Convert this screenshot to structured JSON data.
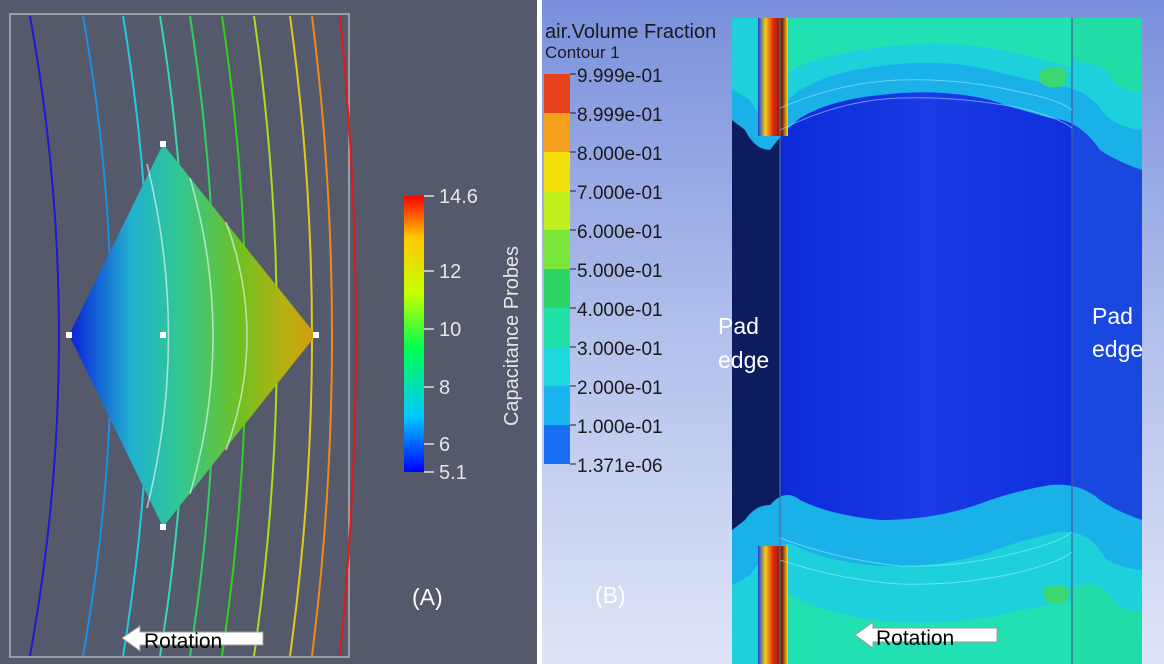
{
  "panel_a": {
    "colorbar": {
      "title": "Capacitance Probes",
      "ticks": [
        "14.6",
        "12",
        "10",
        "8",
        "6",
        "5.1"
      ],
      "colors": [
        "#0000ff",
        "#00c8ff",
        "#00ff50",
        "#c8ff00",
        "#ffc800",
        "#ff0000"
      ]
    },
    "label": "(A)",
    "rotation_label": "Rotation",
    "background": "#545a6b"
  },
  "panel_b": {
    "legend": {
      "title": "air.Volume Fraction",
      "subtitle": "Contour 1",
      "levels": [
        "9.999e-01",
        "8.999e-01",
        "8.000e-01",
        "7.000e-01",
        "6.000e-01",
        "5.000e-01",
        "4.000e-01",
        "3.000e-01",
        "2.000e-01",
        "1.000e-01",
        "1.371e-06"
      ],
      "colors": [
        "#e8421a",
        "#f5a01c",
        "#f2e00c",
        "#c2ef1e",
        "#7ae83a",
        "#2dd664",
        "#20e0a8",
        "#1ed8de",
        "#1ab4ee",
        "#1a6ef2"
      ]
    },
    "pad_edge_left": [
      "Pad",
      "edge"
    ],
    "pad_edge_right": [
      "Pad",
      "edge"
    ],
    "label": "(B)",
    "rotation_label": "Rotation"
  }
}
